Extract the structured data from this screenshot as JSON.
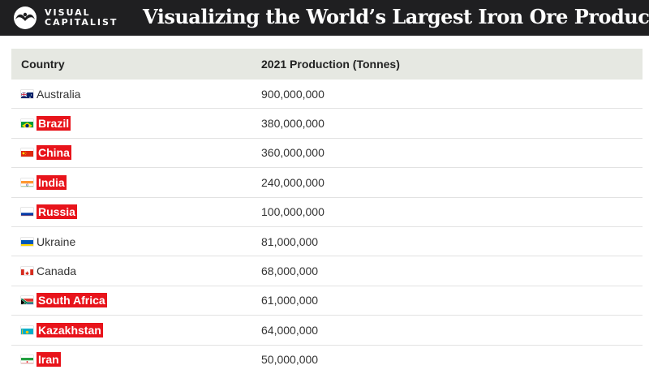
{
  "header": {
    "logo_line1": "VISUAL",
    "logo_line2": "CAPITALIST",
    "title": "Visualizing the World’s Largest Iron Ore Producers"
  },
  "table": {
    "col_country": "Country",
    "col_production": "2021 Production (Tonnes)"
  },
  "chart_data": {
    "type": "table",
    "title": "Visualizing the World’s Largest Iron Ore Producers",
    "columns": [
      "Country",
      "2021 Production (Tonnes)"
    ],
    "rows": [
      {
        "country": "Australia",
        "production": "900,000,000",
        "value": 900000000,
        "highlighted": false,
        "flag": "australia"
      },
      {
        "country": "Brazil",
        "production": "380,000,000",
        "value": 380000000,
        "highlighted": true,
        "flag": "brazil"
      },
      {
        "country": "China",
        "production": "360,000,000",
        "value": 360000000,
        "highlighted": true,
        "flag": "china"
      },
      {
        "country": "India",
        "production": "240,000,000",
        "value": 240000000,
        "highlighted": true,
        "flag": "india"
      },
      {
        "country": "Russia",
        "production": "100,000,000",
        "value": 100000000,
        "highlighted": true,
        "flag": "russia"
      },
      {
        "country": "Ukraine",
        "production": "81,000,000",
        "value": 81000000,
        "highlighted": false,
        "flag": "ukraine"
      },
      {
        "country": "Canada",
        "production": "68,000,000",
        "value": 68000000,
        "highlighted": false,
        "flag": "canada"
      },
      {
        "country": "South Africa",
        "production": "61,000,000",
        "value": 61000000,
        "highlighted": true,
        "flag": "south-africa"
      },
      {
        "country": "Kazakhstan",
        "production": "64,000,000",
        "value": 64000000,
        "highlighted": true,
        "flag": "kazakhstan"
      },
      {
        "country": "Iran",
        "production": "50,000,000",
        "value": 50000000,
        "highlighted": true,
        "flag": "iran"
      }
    ]
  },
  "colors": {
    "header_bg": "#1f1f21",
    "table_header_bg": "#e6e8e2",
    "highlight": "#e8141b"
  }
}
